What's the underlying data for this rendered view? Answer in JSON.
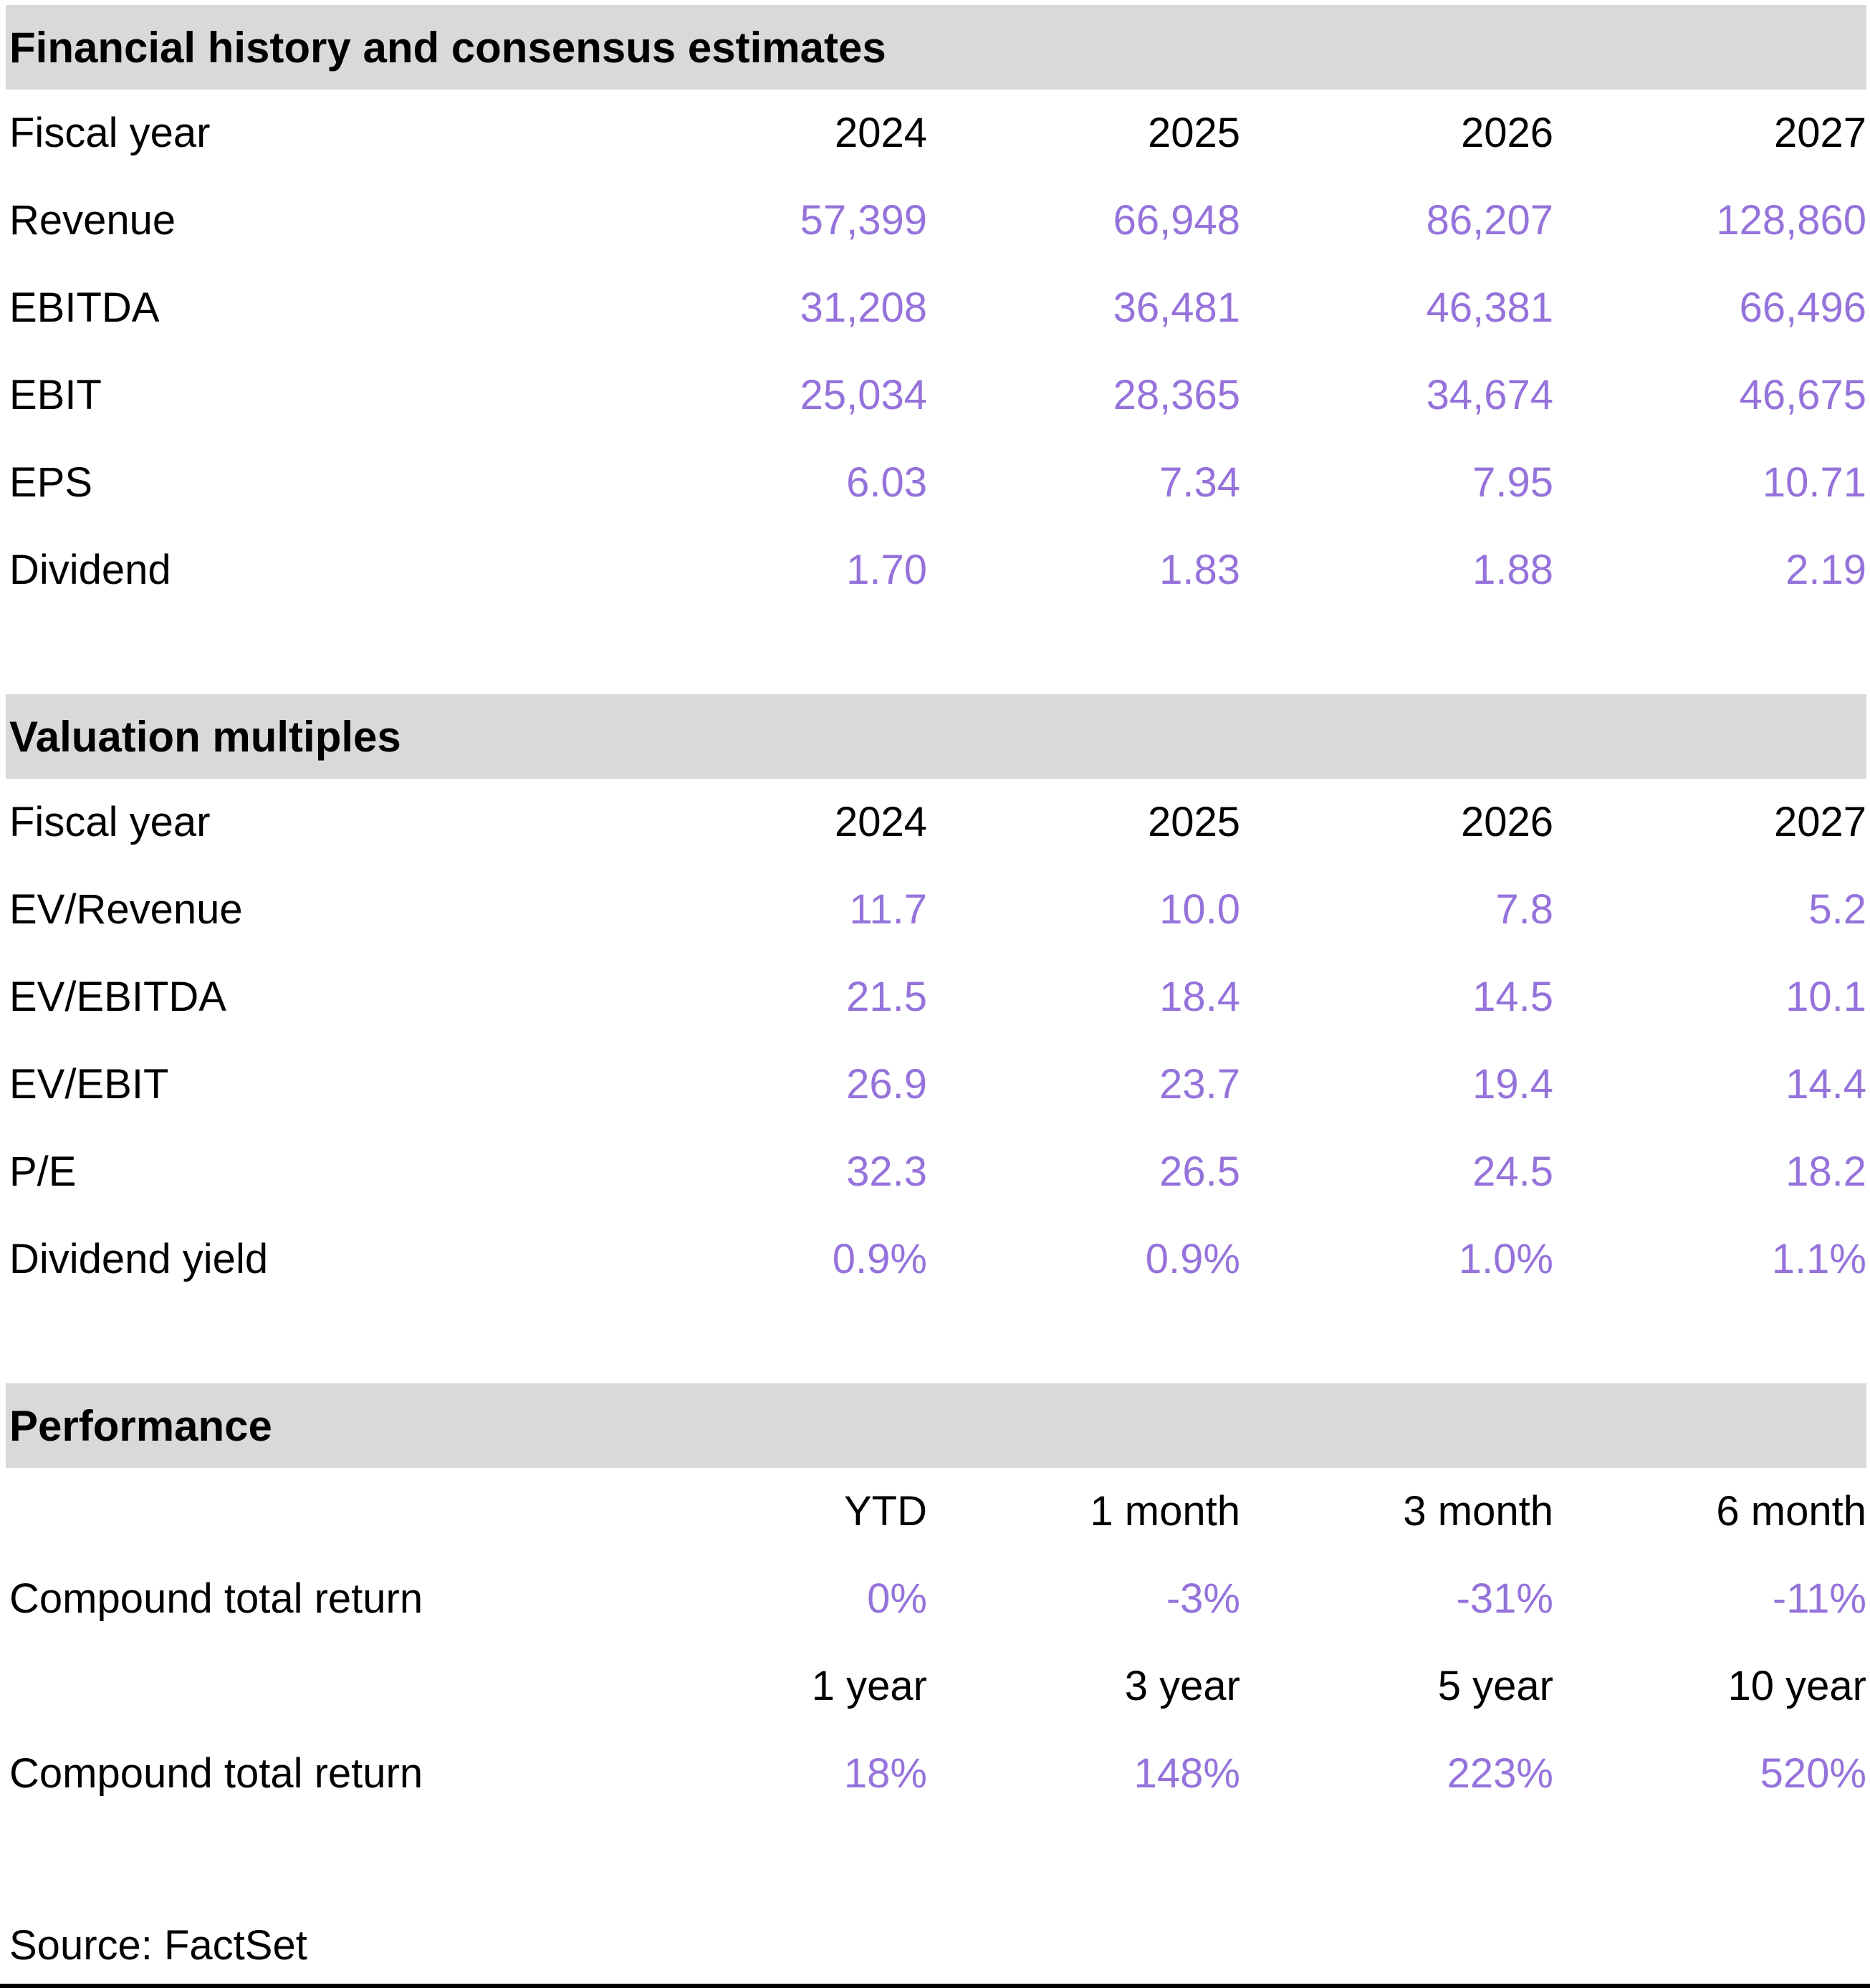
{
  "colors": {
    "accent": "#9673db",
    "band": "#d9d9d9",
    "text": "#000000",
    "rule": "#000000"
  },
  "sections": [
    {
      "title": "Financial history and consensus estimates",
      "header_label": "Fiscal year",
      "columns": [
        "2024",
        "2025",
        "2026",
        "2027"
      ],
      "rows": [
        {
          "label": "Revenue",
          "values": [
            "57,399",
            "66,948",
            "86,207",
            "128,860"
          ]
        },
        {
          "label": "EBITDA",
          "values": [
            "31,208",
            "36,481",
            "46,381",
            "66,496"
          ]
        },
        {
          "label": "EBIT",
          "values": [
            "25,034",
            "28,365",
            "34,674",
            "46,675"
          ]
        },
        {
          "label": "EPS",
          "values": [
            "6.03",
            "7.34",
            "7.95",
            "10.71"
          ]
        },
        {
          "label": "Dividend",
          "values": [
            "1.70",
            "1.83",
            "1.88",
            "2.19"
          ]
        }
      ]
    },
    {
      "title": "Valuation multiples",
      "header_label": "Fiscal year",
      "columns": [
        "2024",
        "2025",
        "2026",
        "2027"
      ],
      "rows": [
        {
          "label": "EV/Revenue",
          "values": [
            "11.7",
            "10.0",
            "7.8",
            "5.2"
          ]
        },
        {
          "label": "EV/EBITDA",
          "values": [
            "21.5",
            "18.4",
            "14.5",
            "10.1"
          ]
        },
        {
          "label": "EV/EBIT",
          "values": [
            "26.9",
            "23.7",
            "19.4",
            "14.4"
          ]
        },
        {
          "label": "P/E",
          "values": [
            "32.3",
            "26.5",
            "24.5",
            "18.2"
          ]
        },
        {
          "label": "Dividend yield",
          "values": [
            "0.9%",
            "0.9%",
            "1.0%",
            "1.1%"
          ]
        }
      ]
    },
    {
      "title": "Performance",
      "blocks": [
        {
          "columns": [
            "YTD",
            "1 month",
            "3 month",
            "6 month"
          ],
          "rows": [
            {
              "label": "Compound total return",
              "values": [
                "0%",
                "-3%",
                "-31%",
                "-11%"
              ]
            }
          ]
        },
        {
          "columns": [
            "1 year",
            "3 year",
            "5 year",
            "10 year"
          ],
          "rows": [
            {
              "label": "Compound total return",
              "values": [
                "18%",
                "148%",
                "223%",
                "520%"
              ]
            }
          ]
        }
      ]
    }
  ],
  "footer": {
    "source_label": "Source: FactSet"
  }
}
